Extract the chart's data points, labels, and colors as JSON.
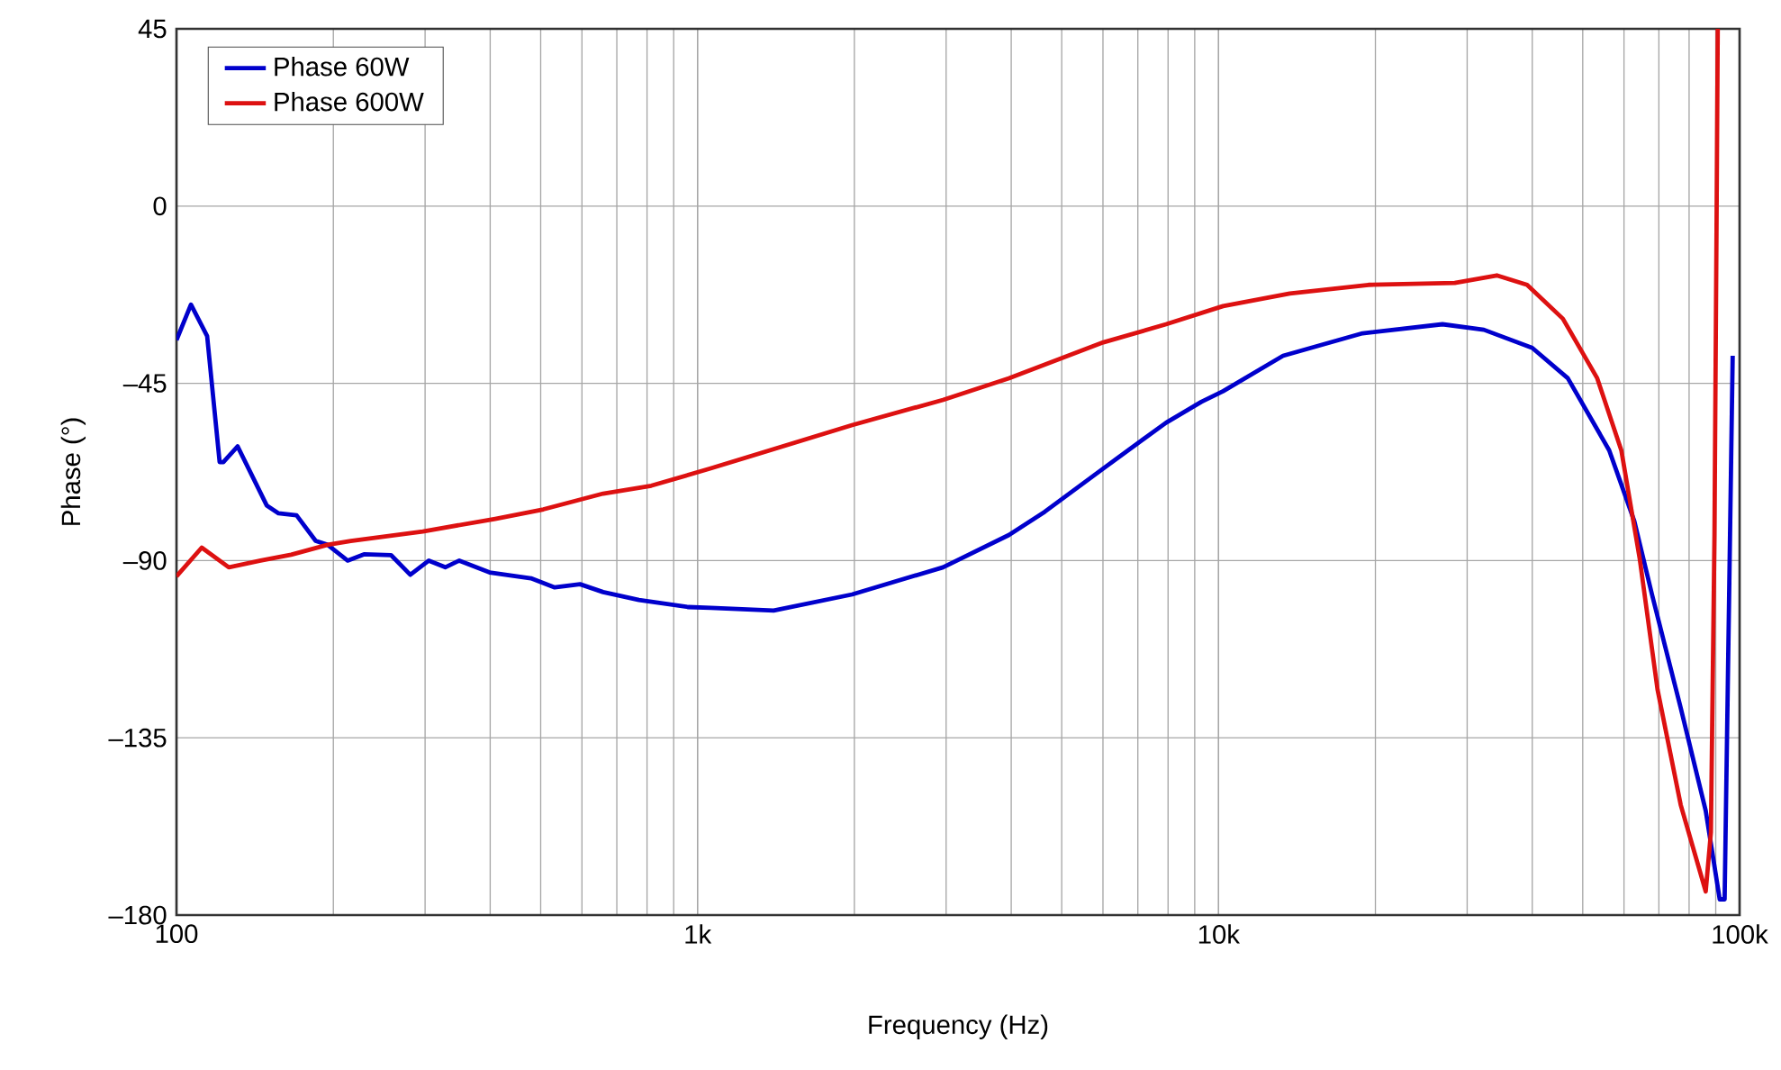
{
  "chart_data": {
    "type": "line",
    "xlabel": "Frequency (Hz)",
    "ylabel": "Phase (°)",
    "log": "x",
    "grid": true,
    "legend": "top left",
    "marker": "none",
    "line_style": "solid",
    "xlim": [
      100,
      100000
    ],
    "ylim": [
      -180,
      45
    ],
    "xticks": [
      {
        "value": 100,
        "label": "100"
      },
      {
        "value": 1000,
        "label": "1k"
      },
      {
        "value": 10000,
        "label": "10k"
      },
      {
        "value": 100000,
        "label": "100k"
      }
    ],
    "yticks": [
      45,
      0,
      {
        "value": -45,
        "label": "–45"
      },
      {
        "value": -90,
        "label": "–90"
      },
      {
        "value": -135,
        "label": "–135"
      },
      {
        "value": -180,
        "label": "–180"
      }
    ],
    "series": [
      {
        "name": "Phase 60W",
        "color": "#0000cc",
        "x": [
          100,
          106.6,
          114.5,
          121,
          123,
          131,
          149,
          157,
          170,
          185,
          195,
          213,
          229,
          258,
          281,
          305,
          328,
          349,
          399,
          479,
          532,
          595,
          659,
          772,
          960,
          1060,
          1400,
          1980,
          2960,
          3960,
          4640,
          6010,
          7930,
          9270,
          10200,
          13300,
          18900,
          26900,
          32300,
          40000,
          46800,
          56200,
          62800,
          67900,
          77100,
          86100,
          91600,
          93600,
          97000
        ],
        "values": [
          -34,
          -25,
          -33,
          -65,
          -65,
          -61,
          -76,
          -78,
          -78.5,
          -85,
          -86,
          -90,
          -88.4,
          -88.6,
          -93.6,
          -90,
          -91.7,
          -90,
          -93,
          -94.5,
          -96.8,
          -96,
          -98,
          -100,
          -101.8,
          -102,
          -102.7,
          -98.6,
          -91.7,
          -83.5,
          -77.6,
          -66.6,
          -55,
          -49.7,
          -47,
          -38,
          -32.3,
          -30,
          -31.4,
          -36,
          -43.7,
          -62,
          -80,
          -98.6,
          -127.4,
          -153.5,
          -176,
          -176,
          -38
        ]
      },
      {
        "name": "Phase 600W",
        "color": "#dd1111",
        "x": [
          100,
          111.8,
          126,
          145,
          166,
          195,
          216,
          297,
          409,
          506,
          659,
          815,
          1060,
          1980,
          2960,
          3960,
          6010,
          7930,
          10200,
          13700,
          19400,
          28400,
          34200,
          39100,
          45800,
          53300,
          59300,
          64300,
          69600,
          77100,
          86100,
          88100,
          89500,
          90300,
          90800
        ],
        "values": [
          -94,
          -86.7,
          -91.7,
          -90,
          -88.5,
          -86,
          -85,
          -82.6,
          -79.4,
          -77,
          -73,
          -71,
          -66.6,
          -55.6,
          -49.2,
          -43.7,
          -34.6,
          -30,
          -25.4,
          -22.2,
          -20,
          -19.5,
          -17.6,
          -20,
          -28.6,
          -43.7,
          -62,
          -89.4,
          -122.8,
          -152,
          -174,
          -159,
          -83.5,
          -7,
          45
        ]
      }
    ]
  }
}
